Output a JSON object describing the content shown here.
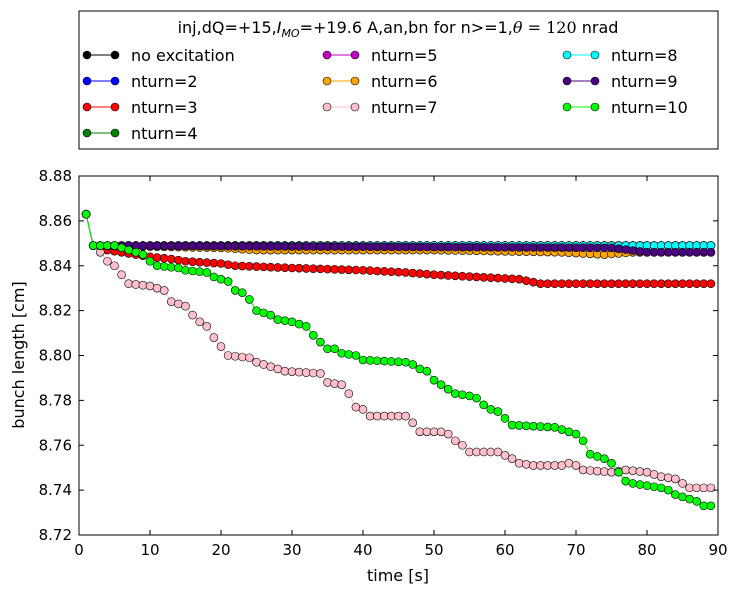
{
  "chart_data": {
    "type": "line",
    "title": "inj,dQ=+15,I_MO=+19.6 A,an,bn for n>=1,θ=120 nrad",
    "title_parts": {
      "t1": "inj,dQ=+15,",
      "t2": "I",
      "t3": "MO",
      "t4": "=+19.6 A,an,bn for n>=1,",
      "t5": "θ",
      "t6": " = 120",
      "t7": " nrad"
    },
    "xlabel": "time [s]",
    "ylabel": "bunch length [cm]",
    "xlim": [
      0,
      90
    ],
    "ylim": [
      8.72,
      8.88
    ],
    "xticks": [
      0,
      10,
      20,
      30,
      40,
      50,
      60,
      70,
      80,
      90
    ],
    "yticks": [
      8.72,
      8.74,
      8.76,
      8.78,
      8.8,
      8.82,
      8.84,
      8.86,
      8.88
    ],
    "xtick_labels": [
      "0",
      "10",
      "20",
      "30",
      "40",
      "50",
      "60",
      "70",
      "80",
      "90"
    ],
    "ytick_labels": [
      "8.72",
      "8.74",
      "8.76",
      "8.78",
      "8.80",
      "8.82",
      "8.84",
      "8.86",
      "8.88"
    ],
    "legend_placement": "top (above axes, 3 columns)",
    "legend_names": [
      "no excitation",
      "nturn=2",
      "nturn=3",
      "nturn=4",
      "nturn=5",
      "nturn=6",
      "nturn=7",
      "nturn=8",
      "nturn=9",
      "nturn=10"
    ],
    "x": [
      1,
      2,
      3,
      4,
      5,
      6,
      7,
      8,
      9,
      10,
      11,
      12,
      13,
      14,
      15,
      16,
      17,
      18,
      19,
      20,
      21,
      22,
      23,
      24,
      25,
      26,
      27,
      28,
      29,
      30,
      31,
      32,
      33,
      34,
      35,
      36,
      37,
      38,
      39,
      40,
      41,
      42,
      43,
      44,
      45,
      46,
      47,
      48,
      49,
      50,
      51,
      52,
      53,
      54,
      55,
      56,
      57,
      58,
      59,
      60,
      61,
      62,
      63,
      64,
      65,
      66,
      67,
      68,
      69,
      70,
      71,
      72,
      73,
      74,
      75,
      76,
      77,
      78,
      79,
      80,
      81,
      82,
      83,
      84,
      85,
      86,
      87,
      88,
      89
    ],
    "series": [
      {
        "name": "no excitation",
        "color": "#000000",
        "keyframes": [
          [
            1,
            8.863
          ],
          [
            2,
            8.849
          ],
          [
            89,
            8.849
          ]
        ]
      },
      {
        "name": "nturn=2",
        "color": "#0000ff",
        "keyframes": [
          [
            1,
            8.863
          ],
          [
            2,
            8.849
          ],
          [
            89,
            8.849
          ]
        ]
      },
      {
        "name": "nturn=3",
        "color": "#ff0000",
        "keyframes": [
          [
            1,
            8.863
          ],
          [
            2,
            8.849
          ],
          [
            4,
            8.847
          ],
          [
            6,
            8.846
          ],
          [
            10,
            8.844
          ],
          [
            13,
            8.843
          ],
          [
            15,
            8.842
          ],
          [
            20,
            8.841
          ],
          [
            22,
            8.84
          ],
          [
            30,
            8.839
          ],
          [
            40,
            8.838
          ],
          [
            46,
            8.837
          ],
          [
            50,
            8.836
          ],
          [
            56,
            8.835
          ],
          [
            62,
            8.834
          ],
          [
            65,
            8.832
          ],
          [
            89,
            8.832
          ]
        ]
      },
      {
        "name": "nturn=4",
        "color": "#008000",
        "keyframes": [
          [
            1,
            8.863
          ],
          [
            2,
            8.849
          ],
          [
            89,
            8.849
          ]
        ]
      },
      {
        "name": "nturn=5",
        "color": "#bf00bf",
        "keyframes": [
          [
            1,
            8.863
          ],
          [
            2,
            8.849
          ],
          [
            89,
            8.849
          ]
        ]
      },
      {
        "name": "nturn=6",
        "color": "#ffa500",
        "keyframes": [
          [
            1,
            8.863
          ],
          [
            2,
            8.849
          ],
          [
            20,
            8.848
          ],
          [
            25,
            8.847
          ],
          [
            50,
            8.847
          ],
          [
            68,
            8.846
          ],
          [
            74,
            8.845
          ],
          [
            78,
            8.846
          ],
          [
            89,
            8.846
          ]
        ]
      },
      {
        "name": "nturn=7",
        "color": "#ffc0cb",
        "keyframes": [
          [
            1,
            8.863
          ],
          [
            2,
            8.849
          ],
          [
            3,
            8.846
          ],
          [
            4,
            8.842
          ],
          [
            5,
            8.84
          ],
          [
            6,
            8.836
          ],
          [
            7,
            8.832
          ],
          [
            10,
            8.831
          ],
          [
            12,
            8.829
          ],
          [
            13,
            8.824
          ],
          [
            15,
            8.822
          ],
          [
            16,
            8.818
          ],
          [
            17,
            8.815
          ],
          [
            18,
            8.813
          ],
          [
            19,
            8.808
          ],
          [
            20,
            8.804
          ],
          [
            21,
            8.8
          ],
          [
            24,
            8.799
          ],
          [
            25,
            8.797
          ],
          [
            27,
            8.795
          ],
          [
            29,
            8.793
          ],
          [
            34,
            8.792
          ],
          [
            35,
            8.788
          ],
          [
            37,
            8.787
          ],
          [
            38,
            8.783
          ],
          [
            39,
            8.777
          ],
          [
            40,
            8.776
          ],
          [
            41,
            8.773
          ],
          [
            46,
            8.773
          ],
          [
            47,
            8.77
          ],
          [
            48,
            8.766
          ],
          [
            51,
            8.766
          ],
          [
            52,
            8.765
          ],
          [
            53,
            8.762
          ],
          [
            54,
            8.76
          ],
          [
            55,
            8.757
          ],
          [
            59,
            8.757
          ],
          [
            61,
            8.754
          ],
          [
            62,
            8.752
          ],
          [
            64,
            8.751
          ],
          [
            68,
            8.751
          ],
          [
            69,
            8.752
          ],
          [
            70,
            8.751
          ],
          [
            71,
            8.749
          ],
          [
            75,
            8.748
          ],
          [
            77,
            8.749
          ],
          [
            80,
            8.748
          ],
          [
            82,
            8.746
          ],
          [
            84,
            8.745
          ],
          [
            86,
            8.741
          ],
          [
            89,
            8.741
          ]
        ]
      },
      {
        "name": "nturn=8",
        "color": "#00ffff",
        "keyframes": [
          [
            1,
            8.863
          ],
          [
            2,
            8.849
          ],
          [
            89,
            8.849
          ]
        ]
      },
      {
        "name": "nturn=9",
        "color": "#4b0082",
        "keyframes": [
          [
            1,
            8.863
          ],
          [
            2,
            8.849
          ],
          [
            75,
            8.848
          ],
          [
            80,
            8.846
          ],
          [
            89,
            8.846
          ]
        ]
      },
      {
        "name": "nturn=10",
        "color": "#00ff00",
        "keyframes": [
          [
            1,
            8.863
          ],
          [
            2,
            8.849
          ],
          [
            5,
            8.849
          ],
          [
            7,
            8.847
          ],
          [
            8,
            8.846
          ],
          [
            9,
            8.845
          ],
          [
            10,
            8.842
          ],
          [
            11,
            8.84
          ],
          [
            14,
            8.839
          ],
          [
            15,
            8.838
          ],
          [
            18,
            8.837
          ],
          [
            19,
            8.835
          ],
          [
            20,
            8.834
          ],
          [
            21,
            8.833
          ],
          [
            22,
            8.829
          ],
          [
            23,
            8.828
          ],
          [
            24,
            8.825
          ],
          [
            25,
            8.82
          ],
          [
            26,
            8.819
          ],
          [
            27,
            8.818
          ],
          [
            28,
            8.816
          ],
          [
            30,
            8.815
          ],
          [
            31,
            8.814
          ],
          [
            32,
            8.813
          ],
          [
            33,
            8.809
          ],
          [
            34,
            8.806
          ],
          [
            35,
            8.803
          ],
          [
            36,
            8.803
          ],
          [
            37,
            8.801
          ],
          [
            39,
            8.8
          ],
          [
            40,
            8.798
          ],
          [
            46,
            8.797
          ],
          [
            47,
            8.796
          ],
          [
            48,
            8.794
          ],
          [
            49,
            8.793
          ],
          [
            50,
            8.789
          ],
          [
            51,
            8.787
          ],
          [
            52,
            8.785
          ],
          [
            53,
            8.783
          ],
          [
            55,
            8.782
          ],
          [
            56,
            8.781
          ],
          [
            57,
            8.778
          ],
          [
            58,
            8.776
          ],
          [
            59,
            8.775
          ],
          [
            60,
            8.772
          ],
          [
            61,
            8.769
          ],
          [
            67,
            8.768
          ],
          [
            68,
            8.767
          ],
          [
            70,
            8.765
          ],
          [
            71,
            8.762
          ],
          [
            72,
            8.756
          ],
          [
            73,
            8.755
          ],
          [
            74,
            8.754
          ],
          [
            75,
            8.752
          ],
          [
            76,
            8.748
          ],
          [
            77,
            8.744
          ],
          [
            78,
            8.743
          ],
          [
            80,
            8.742
          ],
          [
            82,
            8.741
          ],
          [
            83,
            8.74
          ],
          [
            84,
            8.738
          ],
          [
            85,
            8.737
          ],
          [
            86,
            8.736
          ],
          [
            87,
            8.735
          ],
          [
            88,
            8.733
          ],
          [
            89,
            8.733
          ]
        ]
      }
    ]
  }
}
